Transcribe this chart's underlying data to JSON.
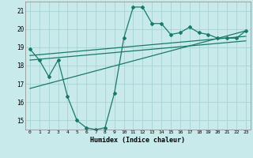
{
  "xlabel": "Humidex (Indice chaleur)",
  "ylabel": "",
  "background_color": "#c8eaea",
  "grid_color": "#a8d4d4",
  "line_color": "#1a7a6a",
  "xlim": [
    -0.5,
    23.5
  ],
  "ylim": [
    14.5,
    21.5
  ],
  "yticks": [
    15,
    16,
    17,
    18,
    19,
    20,
    21
  ],
  "xticks": [
    0,
    1,
    2,
    3,
    4,
    5,
    6,
    7,
    8,
    9,
    10,
    11,
    12,
    13,
    14,
    15,
    16,
    17,
    18,
    19,
    20,
    21,
    22,
    23
  ],
  "series1_x": [
    0,
    1,
    2,
    3,
    4,
    5,
    6,
    7,
    8,
    9,
    10,
    11,
    12,
    13,
    14,
    15,
    16,
    17,
    18,
    19,
    20,
    21,
    22,
    23
  ],
  "series1_y": [
    18.9,
    18.3,
    17.4,
    18.3,
    16.3,
    15.0,
    14.6,
    14.5,
    14.6,
    16.5,
    19.5,
    21.2,
    21.2,
    20.3,
    20.3,
    19.7,
    19.8,
    20.1,
    19.8,
    19.7,
    19.5,
    19.5,
    19.5,
    19.9
  ],
  "series2_x": [
    0,
    23
  ],
  "series2_y": [
    18.3,
    19.35
  ],
  "series3_x": [
    0,
    23
  ],
  "series3_y": [
    18.55,
    19.6
  ],
  "series4_x": [
    0,
    23
  ],
  "series4_y": [
    16.75,
    19.9
  ]
}
